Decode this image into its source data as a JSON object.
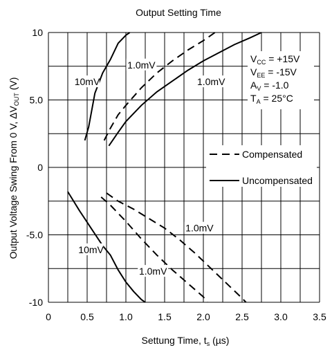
{
  "chart_data": {
    "type": "line",
    "title": "Output Setting Time",
    "xlabel": {
      "main": "Settung Time, t",
      "sub": "s",
      "unit": " (µs)"
    },
    "ylabel": {
      "main": "Output Voltage Swing From 0 V, ΔV",
      "sub": "OUT",
      "unit": " (V)"
    },
    "xlim": [
      0,
      3.5
    ],
    "ylim": [
      -10,
      10
    ],
    "grid": true,
    "x_ticks": [
      "0",
      "0.5",
      "1.0",
      "1.5",
      "2.0",
      "2.5",
      "3.0",
      "3.5"
    ],
    "y_ticks": [
      "10",
      "5.0",
      "0",
      "-5.0",
      "-10"
    ],
    "x_grid_step": 0.25,
    "y_grid_step": 2.5,
    "conditions": [
      {
        "main": "V",
        "sub": "CC",
        "rest": " = +15V"
      },
      {
        "main": "V",
        "sub": "EE",
        "rest": " = -15V"
      },
      {
        "main": "A",
        "sub": "V",
        "rest": " = -1.0"
      },
      {
        "main": "T",
        "sub": "A",
        "rest": " = 25°C"
      }
    ],
    "legend": {
      "placement": "right",
      "entries": [
        {
          "label": "Compensated",
          "style": "dashed"
        },
        {
          "label": "Uncompensated",
          "style": "solid"
        }
      ]
    },
    "series": [
      {
        "style": "solid",
        "points": [
          [
            0.47,
            2.0
          ],
          [
            0.52,
            3.0
          ],
          [
            0.6,
            5.5
          ],
          [
            0.7,
            7.0
          ],
          [
            0.8,
            8.0
          ],
          [
            0.9,
            9.2
          ],
          [
            1.0,
            9.8
          ],
          [
            1.05,
            10.0
          ]
        ]
      },
      {
        "style": "dashed",
        "points": [
          [
            0.72,
            2.0
          ],
          [
            0.8,
            2.9
          ],
          [
            0.9,
            3.9
          ],
          [
            1.0,
            4.6
          ],
          [
            1.2,
            5.9
          ],
          [
            1.4,
            7.0
          ],
          [
            1.6,
            7.9
          ],
          [
            1.8,
            8.7
          ],
          [
            2.0,
            9.4
          ],
          [
            2.15,
            10.0
          ]
        ]
      },
      {
        "style": "solid",
        "points": [
          [
            0.78,
            1.6
          ],
          [
            0.9,
            2.6
          ],
          [
            1.0,
            3.4
          ],
          [
            1.2,
            4.6
          ],
          [
            1.4,
            5.6
          ],
          [
            1.6,
            6.4
          ],
          [
            1.8,
            7.2
          ],
          [
            2.0,
            7.9
          ],
          [
            2.2,
            8.5
          ],
          [
            2.4,
            9.1
          ],
          [
            2.6,
            9.6
          ],
          [
            2.75,
            10.0
          ]
        ]
      },
      {
        "style": "solid",
        "points": [
          [
            0.25,
            -1.8
          ],
          [
            0.4,
            -3.2
          ],
          [
            0.55,
            -4.5
          ],
          [
            0.7,
            -5.8
          ],
          [
            0.8,
            -6.5
          ],
          [
            0.9,
            -7.6
          ],
          [
            1.0,
            -8.5
          ],
          [
            1.1,
            -9.2
          ],
          [
            1.2,
            -9.8
          ],
          [
            1.25,
            -10.0
          ]
        ]
      },
      {
        "style": "dashed",
        "points": [
          [
            0.68,
            -2.2
          ],
          [
            0.8,
            -2.8
          ],
          [
            1.0,
            -4.0
          ],
          [
            1.2,
            -5.3
          ],
          [
            1.4,
            -6.5
          ],
          [
            1.6,
            -7.6
          ],
          [
            1.8,
            -8.6
          ],
          [
            2.0,
            -9.6
          ],
          [
            2.05,
            -10.0
          ]
        ]
      },
      {
        "style": "dashed",
        "points": [
          [
            0.75,
            -1.9
          ],
          [
            0.9,
            -2.5
          ],
          [
            1.1,
            -3.1
          ],
          [
            1.3,
            -3.8
          ],
          [
            1.5,
            -4.5
          ],
          [
            1.7,
            -5.4
          ],
          [
            1.9,
            -6.4
          ],
          [
            2.1,
            -7.5
          ],
          [
            2.3,
            -8.6
          ],
          [
            2.5,
            -9.7
          ],
          [
            2.55,
            -10.0
          ]
        ]
      }
    ],
    "annotations": [
      {
        "text": "10mV",
        "x": 0.5,
        "y": 6.25
      },
      {
        "text": "1.0mV",
        "x": 1.2,
        "y": 7.5
      },
      {
        "text": "1.0mV",
        "x": 2.1,
        "y": 6.25
      },
      {
        "text": "1.0mV",
        "x": 1.95,
        "y": -4.6
      },
      {
        "text": "10mV",
        "x": 0.55,
        "y": -6.2
      },
      {
        "text": "1.0mV",
        "x": 1.35,
        "y": -7.8
      }
    ]
  }
}
